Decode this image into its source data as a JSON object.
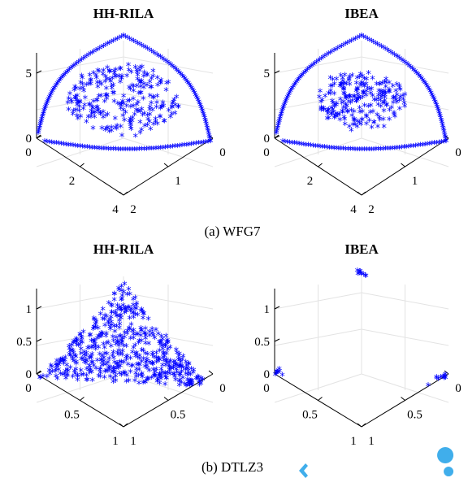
{
  "captions": [
    "(a)  WFG7",
    "(b)  DTLZ3"
  ],
  "marker": "*",
  "colors": {
    "series": "#0000ff",
    "axes": "#000000",
    "grid": "#e3e3e3"
  },
  "chart_data": [
    {
      "type": "scatter",
      "projection": "3d",
      "title": "HH-RILA",
      "pattern": "wfg7_filled",
      "zticks": [
        "0",
        "5"
      ],
      "xticks": [
        "0",
        "2",
        "4"
      ],
      "yticks": [
        "2",
        "1",
        "0"
      ],
      "xlim": [
        0,
        4
      ],
      "ylim": [
        0,
        2
      ],
      "zlim": [
        0,
        6
      ]
    },
    {
      "type": "scatter",
      "projection": "3d",
      "title": "IBEA",
      "pattern": "wfg7_ibea",
      "zticks": [
        "0",
        "5"
      ],
      "xticks": [
        "0",
        "2",
        "4"
      ],
      "yticks": [
        "2",
        "1",
        "0"
      ],
      "xlim": [
        0,
        4
      ],
      "ylim": [
        0,
        2
      ],
      "zlim": [
        0,
        6
      ]
    },
    {
      "type": "scatter",
      "projection": "3d",
      "title": "HH-RILA",
      "pattern": "sphere_filled",
      "zticks": [
        "0",
        "0.5",
        "1"
      ],
      "xticks": [
        "0",
        "0.5",
        "1"
      ],
      "yticks": [
        "1",
        "0.5",
        "0"
      ],
      "xlim": [
        0,
        1
      ],
      "ylim": [
        0,
        1
      ],
      "zlim": [
        0,
        1
      ]
    },
    {
      "type": "scatter",
      "projection": "3d",
      "title": "IBEA",
      "pattern": "sphere_corners",
      "zticks": [
        "0",
        "0.5",
        "1"
      ],
      "xticks": [
        "0",
        "0.5",
        "1"
      ],
      "yticks": [
        "1",
        "0.5",
        "0"
      ],
      "xlim": [
        0,
        1
      ],
      "ylim": [
        0,
        1
      ],
      "zlim": [
        0,
        1
      ]
    }
  ]
}
